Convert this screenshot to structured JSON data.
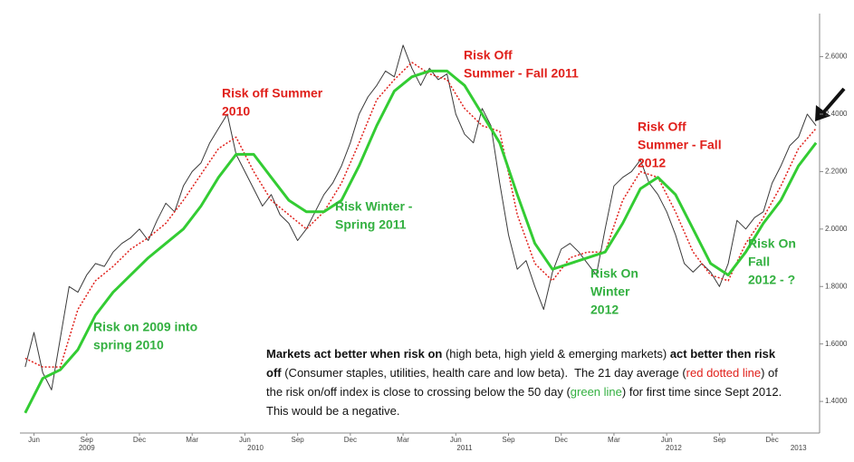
{
  "chart_data": {
    "type": "line",
    "xlim": [
      4.2,
      49.7
    ],
    "ylim": [
      1.29,
      2.75
    ],
    "xticks": [
      {
        "value": 5,
        "label": "Jun"
      },
      {
        "value": 8,
        "label": "Sep"
      },
      {
        "value": 11,
        "label": "Dec"
      },
      {
        "value": 14,
        "label": "Mar"
      },
      {
        "value": 17,
        "label": "Jun"
      },
      {
        "value": 20,
        "label": "Sep"
      },
      {
        "value": 23,
        "label": "Dec"
      },
      {
        "value": 26,
        "label": "Mar"
      },
      {
        "value": 29,
        "label": "Jun"
      },
      {
        "value": 32,
        "label": "Sep"
      },
      {
        "value": 35,
        "label": "Dec"
      },
      {
        "value": 38,
        "label": "Mar"
      },
      {
        "value": 41,
        "label": "Jun"
      },
      {
        "value": 44,
        "label": "Sep"
      },
      {
        "value": 47,
        "label": "Dec"
      }
    ],
    "year_labels": [
      {
        "value": 8,
        "label": "2009"
      },
      {
        "value": 17.6,
        "label": "2010"
      },
      {
        "value": 29.5,
        "label": "2011"
      },
      {
        "value": 41.4,
        "label": "2012"
      },
      {
        "value": 48.5,
        "label": "2013"
      }
    ],
    "yticks": [
      {
        "value": 1.4,
        "label": "1.4000"
      },
      {
        "value": 1.6,
        "label": "1.6000"
      },
      {
        "value": 1.8,
        "label": "1.8000"
      },
      {
        "value": 2.0,
        "label": "2.0000"
      },
      {
        "value": 2.2,
        "label": "2.2000"
      },
      {
        "value": 2.4,
        "label": "2.4000"
      },
      {
        "value": 2.6,
        "label": "2.6000"
      }
    ],
    "series": [
      {
        "color": "#3a3a3a",
        "style": "solid",
        "width": 1,
        "x": [
          4.5,
          5,
          5.5,
          6,
          6.5,
          7,
          7.5,
          8,
          8.5,
          9,
          9.5,
          10,
          10.5,
          11,
          11.5,
          12,
          12.5,
          13,
          13.5,
          14,
          14.5,
          15,
          15.5,
          16,
          16.5,
          17,
          17.5,
          18,
          18.5,
          19,
          19.5,
          20,
          20.5,
          21,
          21.5,
          22,
          22.5,
          23,
          23.5,
          24,
          24.5,
          25,
          25.5,
          26,
          26.5,
          27,
          27.5,
          28,
          28.5,
          29,
          29.5,
          30,
          30.5,
          31,
          31.5,
          32,
          32.5,
          33,
          33.5,
          34,
          34.5,
          35,
          35.5,
          36,
          36.5,
          37,
          37.5,
          38,
          38.5,
          39,
          39.5,
          40,
          40.5,
          41,
          41.5,
          42,
          42.5,
          43,
          43.5,
          44,
          44.5,
          45,
          45.5,
          46,
          46.5,
          47,
          47.5,
          48,
          48.5,
          49,
          49.5
        ],
        "values": [
          1.52,
          1.64,
          1.5,
          1.44,
          1.62,
          1.8,
          1.78,
          1.84,
          1.88,
          1.87,
          1.92,
          1.95,
          1.97,
          2.0,
          1.96,
          2.03,
          2.09,
          2.06,
          2.15,
          2.2,
          2.23,
          2.3,
          2.35,
          2.4,
          2.26,
          2.2,
          2.14,
          2.08,
          2.12,
          2.05,
          2.02,
          1.96,
          2.0,
          2.06,
          2.12,
          2.16,
          2.22,
          2.3,
          2.4,
          2.46,
          2.5,
          2.55,
          2.53,
          2.64,
          2.56,
          2.5,
          2.56,
          2.52,
          2.54,
          2.4,
          2.33,
          2.3,
          2.42,
          2.36,
          2.16,
          1.98,
          1.86,
          1.89,
          1.8,
          1.72,
          1.85,
          1.93,
          1.95,
          1.92,
          1.88,
          1.84,
          2.0,
          2.15,
          2.18,
          2.2,
          2.24,
          2.16,
          2.12,
          2.06,
          1.98,
          1.88,
          1.85,
          1.88,
          1.85,
          1.8,
          1.88,
          2.03,
          2.0,
          2.04,
          2.06,
          2.16,
          2.22,
          2.29,
          2.32,
          2.4,
          2.36
        ]
      },
      {
        "color": "#e0201b",
        "style": "dotted",
        "width": 1.5,
        "x": [
          4.5,
          5.5,
          6.5,
          7.5,
          8.5,
          9.5,
          10.5,
          11.5,
          12.5,
          13.5,
          14.5,
          15.5,
          16.5,
          17.5,
          18.5,
          19.5,
          20.5,
          21.5,
          22.5,
          23.5,
          24.5,
          25.5,
          26.5,
          27.5,
          28.5,
          29.5,
          30.5,
          31.5,
          32.5,
          33.5,
          34.5,
          35.5,
          36.5,
          37.5,
          38.5,
          39.5,
          40.5,
          41.5,
          42.5,
          43.5,
          44.5,
          45.5,
          46.5,
          47.5,
          48.5,
          49.5
        ],
        "values": [
          1.55,
          1.52,
          1.52,
          1.72,
          1.82,
          1.87,
          1.93,
          1.97,
          2.02,
          2.1,
          2.19,
          2.28,
          2.32,
          2.2,
          2.1,
          2.05,
          2.0,
          2.06,
          2.16,
          2.3,
          2.45,
          2.52,
          2.58,
          2.54,
          2.52,
          2.42,
          2.36,
          2.34,
          2.05,
          1.88,
          1.82,
          1.9,
          1.92,
          1.92,
          2.1,
          2.2,
          2.18,
          2.06,
          1.92,
          1.84,
          1.82,
          1.95,
          2.04,
          2.15,
          2.28,
          2.35
        ]
      },
      {
        "color": "#33cc33",
        "style": "solid",
        "width": 3,
        "x": [
          4.5,
          5.5,
          6.5,
          7.5,
          8.5,
          9.5,
          10.5,
          11.5,
          12.5,
          13.5,
          14.5,
          15.5,
          16.5,
          17.5,
          18.5,
          19.5,
          20.5,
          21.5,
          22.5,
          23.5,
          24.5,
          25.5,
          26.5,
          27.5,
          28.5,
          29.5,
          30.5,
          31.5,
          32.5,
          33.5,
          34.5,
          35.5,
          36.5,
          37.5,
          38.5,
          39.5,
          40.5,
          41.5,
          42.5,
          43.5,
          44.5,
          45.5,
          46.5,
          47.5,
          48.5,
          49.5
        ],
        "values": [
          1.36,
          1.48,
          1.51,
          1.58,
          1.7,
          1.78,
          1.84,
          1.9,
          1.95,
          2.0,
          2.08,
          2.18,
          2.26,
          2.26,
          2.18,
          2.1,
          2.06,
          2.06,
          2.1,
          2.22,
          2.36,
          2.48,
          2.53,
          2.55,
          2.55,
          2.5,
          2.4,
          2.3,
          2.12,
          1.95,
          1.86,
          1.88,
          1.9,
          1.92,
          2.02,
          2.14,
          2.18,
          2.12,
          2.0,
          1.88,
          1.84,
          1.92,
          2.02,
          2.1,
          2.22,
          2.3
        ]
      }
    ],
    "annotations": [
      {
        "color": "#e0201b",
        "lines": [
          "Risk off Summer",
          "2010"
        ]
      },
      {
        "color": "#e0201b",
        "lines": [
          "Risk Off",
          "Summer - Fall 2011"
        ]
      },
      {
        "color": "#e0201b",
        "lines": [
          "Risk Off",
          "Summer - Fall",
          "2012"
        ]
      },
      {
        "color": "#33b040",
        "lines": [
          "Risk Winter -",
          "Spring 2011"
        ]
      },
      {
        "color": "#33b040",
        "lines": [
          "Risk on 2009  into",
          "spring 2010"
        ]
      },
      {
        "color": "#33b040",
        "lines": [
          "Risk On",
          "Winter",
          "2012"
        ]
      },
      {
        "color": "#33b040",
        "lines": [
          "Risk On",
          "Fall",
          "2012 - ?"
        ]
      }
    ],
    "note": [
      {
        "text": "Markets act better when risk on",
        "bold": true
      },
      {
        "text": " (high beta, high yield & emerging markets) "
      },
      {
        "text": "act better then risk off",
        "bold": true
      },
      {
        "text": " (Consumer staples, utilities, health care and low beta).  The 21 day average ("
      },
      {
        "text": "red dotted line",
        "color": "#e0201b"
      },
      {
        "text": ") of the risk on/off index is close to crossing below the 50 day ("
      },
      {
        "text": "green line",
        "color": "#33b040"
      },
      {
        "text": ") for first time since Sept 2012.  This would be a negative."
      }
    ]
  }
}
